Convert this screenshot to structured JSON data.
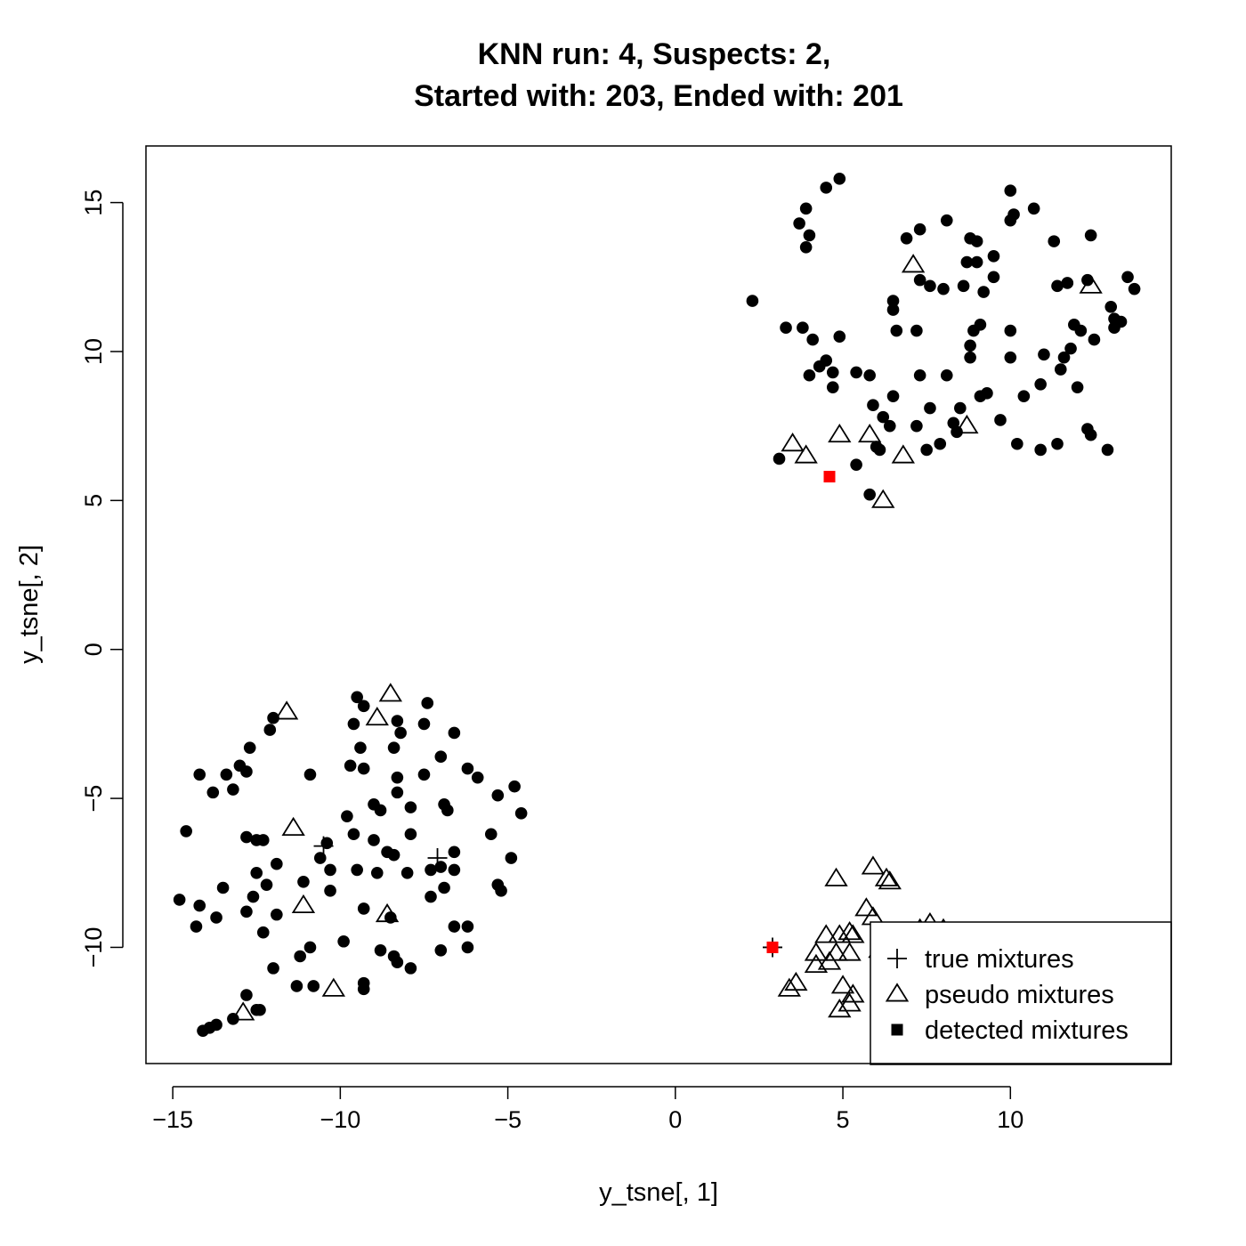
{
  "chart_data": {
    "type": "scatter",
    "title_line1": "KNN run: 4, Suspects: 2,",
    "title_line2": "Started with: 203, Ended with: 201",
    "xlabel": "y_tsne[, 1]",
    "ylabel": "y_tsne[, 2]",
    "xlim": [
      -15.8,
      14.8
    ],
    "ylim": [
      -13.9,
      16.9
    ],
    "x_ticks": [
      -15,
      -10,
      -5,
      0,
      5,
      10
    ],
    "x_tick_labels": [
      "−15",
      "−10",
      "−5",
      "0",
      "5",
      "10"
    ],
    "y_ticks": [
      -10,
      -5,
      0,
      5,
      10,
      15
    ],
    "y_tick_labels": [
      "−10",
      "−5",
      "0",
      "5",
      "10",
      "15"
    ],
    "grid": false,
    "legend_position": "bottom-right",
    "legend": [
      {
        "label": "true mixtures",
        "marker": "plus"
      },
      {
        "label": "pseudo mixtures",
        "marker": "triangle"
      },
      {
        "label": "detected mixtures",
        "marker": "square"
      }
    ],
    "series": [
      {
        "marker": "dot",
        "color": "#000000",
        "points": [
          [
            4.9,
            15.8
          ],
          [
            4.5,
            15.5
          ],
          [
            10.0,
            15.4
          ],
          [
            10.7,
            14.8
          ],
          [
            10.1,
            14.6
          ],
          [
            3.9,
            14.8
          ],
          [
            3.7,
            14.3
          ],
          [
            4.0,
            13.9
          ],
          [
            6.9,
            13.8
          ],
          [
            7.3,
            14.1
          ],
          [
            8.1,
            14.4
          ],
          [
            8.8,
            13.8
          ],
          [
            9.0,
            13.7
          ],
          [
            9.5,
            13.2
          ],
          [
            10.0,
            14.4
          ],
          [
            11.3,
            13.7
          ],
          [
            12.4,
            13.9
          ],
          [
            3.9,
            13.5
          ],
          [
            8.7,
            13.0
          ],
          [
            9.0,
            13.0
          ],
          [
            7.3,
            12.4
          ],
          [
            7.6,
            12.2
          ],
          [
            8.0,
            12.1
          ],
          [
            8.6,
            12.2
          ],
          [
            9.2,
            12.0
          ],
          [
            9.5,
            12.5
          ],
          [
            6.5,
            11.7
          ],
          [
            6.5,
            11.4
          ],
          [
            11.4,
            12.2
          ],
          [
            11.7,
            12.3
          ],
          [
            12.3,
            12.4
          ],
          [
            13.5,
            12.5
          ],
          [
            13.7,
            12.1
          ],
          [
            2.3,
            11.7
          ],
          [
            3.3,
            10.8
          ],
          [
            3.8,
            10.8
          ],
          [
            4.1,
            10.4
          ],
          [
            4.9,
            10.5
          ],
          [
            6.6,
            10.7
          ],
          [
            7.2,
            10.7
          ],
          [
            8.9,
            10.7
          ],
          [
            9.1,
            10.9
          ],
          [
            10.0,
            10.7
          ],
          [
            11.9,
            10.9
          ],
          [
            12.1,
            10.7
          ],
          [
            12.5,
            10.4
          ],
          [
            13.0,
            11.5
          ],
          [
            13.1,
            11.1
          ],
          [
            13.3,
            11.0
          ],
          [
            13.1,
            10.8
          ],
          [
            8.8,
            10.2
          ],
          [
            11.0,
            9.9
          ],
          [
            11.6,
            9.8
          ],
          [
            10.0,
            9.8
          ],
          [
            11.8,
            10.1
          ],
          [
            8.8,
            9.8
          ],
          [
            4.5,
            9.7
          ],
          [
            4.3,
            9.5
          ],
          [
            4.7,
            9.3
          ],
          [
            4.0,
            9.2
          ],
          [
            5.4,
            9.3
          ],
          [
            5.8,
            9.2
          ],
          [
            7.3,
            9.2
          ],
          [
            8.1,
            9.2
          ],
          [
            11.5,
            9.4
          ],
          [
            4.7,
            8.8
          ],
          [
            6.5,
            8.5
          ],
          [
            9.1,
            8.5
          ],
          [
            9.3,
            8.6
          ],
          [
            10.4,
            8.5
          ],
          [
            10.9,
            8.9
          ],
          [
            12.0,
            8.8
          ],
          [
            5.9,
            8.2
          ],
          [
            6.2,
            7.8
          ],
          [
            7.6,
            8.1
          ],
          [
            8.5,
            8.1
          ],
          [
            6.4,
            7.5
          ],
          [
            7.2,
            7.5
          ],
          [
            8.3,
            7.6
          ],
          [
            9.7,
            7.7
          ],
          [
            8.4,
            7.3
          ],
          [
            6.0,
            6.8
          ],
          [
            6.1,
            6.7
          ],
          [
            7.5,
            6.7
          ],
          [
            7.9,
            6.9
          ],
          [
            10.2,
            6.9
          ],
          [
            10.9,
            6.7
          ],
          [
            11.4,
            6.9
          ],
          [
            12.3,
            7.4
          ],
          [
            12.4,
            7.2
          ],
          [
            12.9,
            6.7
          ],
          [
            3.1,
            6.4
          ],
          [
            5.4,
            6.2
          ],
          [
            5.8,
            5.2
          ],
          [
            -9.5,
            -1.6
          ],
          [
            -9.3,
            -1.9
          ],
          [
            -7.4,
            -1.8
          ],
          [
            -12.0,
            -2.3
          ],
          [
            -12.1,
            -2.7
          ],
          [
            -9.6,
            -2.5
          ],
          [
            -8.3,
            -2.4
          ],
          [
            -8.2,
            -2.8
          ],
          [
            -7.5,
            -2.5
          ],
          [
            -6.6,
            -2.8
          ],
          [
            -12.7,
            -3.3
          ],
          [
            -9.4,
            -3.3
          ],
          [
            -8.4,
            -3.3
          ],
          [
            -7.0,
            -3.6
          ],
          [
            -14.2,
            -4.2
          ],
          [
            -13.4,
            -4.2
          ],
          [
            -13.0,
            -3.9
          ],
          [
            -12.8,
            -4.1
          ],
          [
            -10.9,
            -4.2
          ],
          [
            -9.7,
            -3.9
          ],
          [
            -9.3,
            -4.0
          ],
          [
            -8.3,
            -4.3
          ],
          [
            -7.5,
            -4.2
          ],
          [
            -6.2,
            -4.0
          ],
          [
            -5.9,
            -4.3
          ],
          [
            -13.8,
            -4.8
          ],
          [
            -13.2,
            -4.7
          ],
          [
            -8.3,
            -4.8
          ],
          [
            -8.8,
            -5.4
          ],
          [
            -9.0,
            -5.2
          ],
          [
            -7.9,
            -5.3
          ],
          [
            -6.9,
            -5.2
          ],
          [
            -6.8,
            -5.4
          ],
          [
            -5.3,
            -4.9
          ],
          [
            -4.8,
            -4.6
          ],
          [
            -4.6,
            -5.5
          ],
          [
            -14.6,
            -6.1
          ],
          [
            -12.8,
            -6.3
          ],
          [
            -12.5,
            -6.4
          ],
          [
            -12.3,
            -6.4
          ],
          [
            -9.8,
            -5.6
          ],
          [
            -9.6,
            -6.2
          ],
          [
            -9.0,
            -6.4
          ],
          [
            -7.9,
            -6.2
          ],
          [
            -5.5,
            -6.2
          ],
          [
            -10.4,
            -6.5
          ],
          [
            -10.6,
            -7.0
          ],
          [
            -8.6,
            -6.8
          ],
          [
            -8.4,
            -6.9
          ],
          [
            -6.6,
            -6.8
          ],
          [
            -6.6,
            -7.4
          ],
          [
            -4.9,
            -7.0
          ],
          [
            -10.3,
            -7.4
          ],
          [
            -12.5,
            -7.5
          ],
          [
            -11.9,
            -7.2
          ],
          [
            -9.5,
            -7.4
          ],
          [
            -8.9,
            -7.5
          ],
          [
            -8.0,
            -7.5
          ],
          [
            -7.3,
            -7.4
          ],
          [
            -7.0,
            -7.3
          ],
          [
            -11.1,
            -7.8
          ],
          [
            -13.5,
            -8.0
          ],
          [
            -12.2,
            -7.9
          ],
          [
            -10.3,
            -8.1
          ],
          [
            -6.9,
            -8.0
          ],
          [
            -5.3,
            -7.9
          ],
          [
            -5.2,
            -8.1
          ],
          [
            -14.8,
            -8.4
          ],
          [
            -14.2,
            -8.6
          ],
          [
            -12.6,
            -8.3
          ],
          [
            -7.3,
            -8.3
          ],
          [
            -12.8,
            -8.8
          ],
          [
            -11.9,
            -8.9
          ],
          [
            -9.3,
            -8.7
          ],
          [
            -13.7,
            -9.0
          ],
          [
            -8.5,
            -9.0
          ],
          [
            -6.6,
            -9.3
          ],
          [
            -6.2,
            -9.3
          ],
          [
            -14.3,
            -9.3
          ],
          [
            -12.3,
            -9.5
          ],
          [
            -9.9,
            -9.8
          ],
          [
            -10.9,
            -10.0
          ],
          [
            -8.8,
            -10.1
          ],
          [
            -8.4,
            -10.3
          ],
          [
            -8.3,
            -10.5
          ],
          [
            -7.9,
            -10.7
          ],
          [
            -7.0,
            -10.1
          ],
          [
            -6.2,
            -10.0
          ],
          [
            -11.2,
            -10.3
          ],
          [
            -12.0,
            -10.7
          ],
          [
            -11.3,
            -11.3
          ],
          [
            -10.8,
            -11.3
          ],
          [
            -9.3,
            -11.2
          ],
          [
            -9.3,
            -11.4
          ],
          [
            -12.8,
            -11.6
          ],
          [
            -12.5,
            -12.1
          ],
          [
            -12.4,
            -12.1
          ],
          [
            -13.2,
            -12.4
          ],
          [
            -13.7,
            -12.6
          ],
          [
            -13.9,
            -12.7
          ],
          [
            -14.1,
            -12.8
          ]
        ]
      },
      {
        "marker": "triangle",
        "color": "#000000",
        "points": [
          [
            7.1,
            12.9
          ],
          [
            12.4,
            12.2
          ],
          [
            3.5,
            6.9
          ],
          [
            3.9,
            6.5
          ],
          [
            4.9,
            7.2
          ],
          [
            5.8,
            7.2
          ],
          [
            6.8,
            6.5
          ],
          [
            8.7,
            7.5
          ],
          [
            6.2,
            5.0
          ],
          [
            4.8,
            -7.7
          ],
          [
            5.9,
            -7.3
          ],
          [
            6.3,
            -7.7
          ],
          [
            6.4,
            -7.8
          ],
          [
            5.7,
            -8.7
          ],
          [
            5.9,
            -9.0
          ],
          [
            4.5,
            -9.6
          ],
          [
            4.9,
            -9.6
          ],
          [
            5.2,
            -9.5
          ],
          [
            5.3,
            -9.6
          ],
          [
            6.1,
            -10.1
          ],
          [
            6.7,
            -10.1
          ],
          [
            6.9,
            -9.9
          ],
          [
            7.3,
            -9.4
          ],
          [
            7.6,
            -9.2
          ],
          [
            8.0,
            -9.4
          ],
          [
            4.2,
            -10.2
          ],
          [
            4.8,
            -10.2
          ],
          [
            5.2,
            -10.2
          ],
          [
            4.2,
            -10.6
          ],
          [
            4.6,
            -10.5
          ],
          [
            6.4,
            -10.6
          ],
          [
            6.5,
            -10.9
          ],
          [
            7.4,
            -10.4
          ],
          [
            8.0,
            -10.7
          ],
          [
            3.6,
            -11.2
          ],
          [
            3.4,
            -11.4
          ],
          [
            5.0,
            -11.3
          ],
          [
            5.3,
            -11.6
          ],
          [
            6.6,
            -11.5
          ],
          [
            7.3,
            -11.6
          ],
          [
            7.3,
            -11.8
          ],
          [
            5.2,
            -11.9
          ],
          [
            4.9,
            -12.1
          ],
          [
            -11.6,
            -2.1
          ],
          [
            -8.5,
            -1.5
          ],
          [
            -8.9,
            -2.3
          ],
          [
            -11.4,
            -6.0
          ],
          [
            -11.1,
            -8.6
          ],
          [
            -10.2,
            -11.4
          ],
          [
            -8.6,
            -8.9
          ],
          [
            -12.9,
            -12.2
          ]
        ]
      },
      {
        "marker": "plus",
        "color": "#000000",
        "points": [
          [
            -10.5,
            -6.6
          ],
          [
            -7.1,
            -7.0
          ],
          [
            2.9,
            -10.0
          ]
        ]
      },
      {
        "marker": "square",
        "color": "#ff0000",
        "points": [
          [
            4.6,
            5.8
          ],
          [
            2.9,
            -10.0
          ]
        ]
      }
    ]
  }
}
